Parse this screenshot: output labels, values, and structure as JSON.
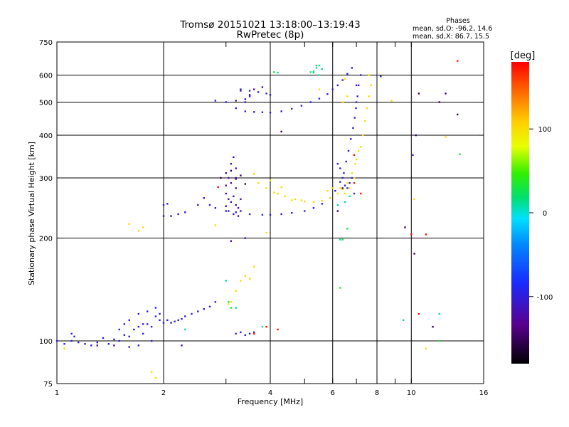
{
  "chart_data": {
    "type": "scatter",
    "title": "Tromsø 20151021 13:18:00–13:19:43",
    "subtitle": "RwPretec (8p)",
    "phase_box": {
      "heading": "Phases",
      "line1": "mean, sd,O: -96.2, 14.6",
      "line2": "mean, sd,X: 86.7, 15.5"
    },
    "xlabel": "Frequency [MHz]",
    "ylabel": "Stationary phase Virtual Height [km]",
    "x_scale": "log2",
    "y_scale": "log",
    "xlim": [
      1,
      16
    ],
    "ylim": [
      75,
      750
    ],
    "x_ticks": [
      1,
      2,
      4,
      6,
      8,
      10,
      16
    ],
    "x_tick_labels": [
      "1",
      "2",
      "4",
      "6",
      "8",
      "10",
      "16"
    ],
    "x_gridlines": [
      2,
      4,
      6,
      8,
      10
    ],
    "x_extra_ticks": [
      3,
      5,
      7,
      9
    ],
    "y_ticks": [
      75,
      100,
      200,
      300,
      400,
      500,
      600,
      750
    ],
    "y_tick_labels": [
      "75",
      "100",
      "200",
      "300",
      "400",
      "500",
      "600",
      "750"
    ],
    "y_gridlines": [
      100,
      200,
      300,
      400,
      500,
      600
    ],
    "grid": true,
    "colorbar": {
      "label": "[deg]",
      "range": [
        -180,
        180
      ],
      "tick_values": [
        100,
        0,
        -100
      ],
      "tick_labels": [
        "100",
        "0",
        "-100"
      ]
    },
    "series": [
      {
        "phase": -100,
        "points": [
          [
            1.0,
            100
          ],
          [
            1.05,
            98
          ],
          [
            1.1,
            100
          ],
          [
            1.15,
            99
          ],
          [
            1.2,
            98
          ],
          [
            1.25,
            97
          ],
          [
            1.3,
            99
          ],
          [
            1.35,
            102
          ],
          [
            1.4,
            98
          ],
          [
            1.45,
            101
          ],
          [
            1.5,
            100
          ],
          [
            1.55,
            104
          ],
          [
            1.6,
            103
          ],
          [
            1.65,
            108
          ],
          [
            1.7,
            110
          ],
          [
            1.75,
            105
          ],
          [
            1.8,
            112
          ],
          [
            1.85,
            110
          ],
          [
            1.9,
            118
          ],
          [
            1.95,
            115
          ],
          [
            2.0,
            113
          ],
          [
            2.05,
            115
          ],
          [
            2.1,
            113
          ],
          [
            2.15,
            114
          ],
          [
            2.2,
            115
          ],
          [
            2.25,
            116
          ],
          [
            2.3,
            118
          ],
          [
            2.4,
            120
          ],
          [
            2.5,
            122
          ],
          [
            2.6,
            124
          ],
          [
            2.7,
            126
          ],
          [
            2.8,
            130
          ],
          [
            1.1,
            105
          ],
          [
            1.12,
            103
          ],
          [
            1.5,
            108
          ],
          [
            1.55,
            112
          ],
          [
            1.6,
            115
          ],
          [
            1.7,
            120
          ],
          [
            1.75,
            112
          ],
          [
            1.8,
            122
          ],
          [
            1.9,
            125
          ],
          [
            1.95,
            120
          ],
          [
            1.85,
            100
          ],
          [
            1.7,
            97
          ],
          [
            3.2,
            105
          ],
          [
            3.3,
            106
          ],
          [
            3.4,
            104
          ],
          [
            3.5,
            105
          ],
          [
            3.6,
            106
          ],
          [
            2.0,
            232
          ],
          [
            2.1,
            232
          ],
          [
            2.2,
            235
          ],
          [
            2.3,
            238
          ],
          [
            2.0,
            250
          ],
          [
            2.05,
            252
          ],
          [
            2.5,
            250
          ],
          [
            2.6,
            262
          ],
          [
            2.7,
            250
          ],
          [
            2.8,
            245
          ],
          [
            3.0,
            240
          ],
          [
            3.2,
            238
          ],
          [
            3.5,
            235
          ],
          [
            3.8,
            234
          ],
          [
            4.0,
            234
          ],
          [
            4.3,
            235
          ],
          [
            4.6,
            237
          ],
          [
            5.0,
            240
          ],
          [
            5.3,
            245
          ],
          [
            5.6,
            252
          ],
          [
            5.9,
            262
          ],
          [
            6.1,
            275
          ],
          [
            6.3,
            292
          ],
          [
            6.45,
            310
          ],
          [
            6.55,
            335
          ],
          [
            6.65,
            360
          ],
          [
            6.75,
            390
          ],
          [
            6.85,
            420
          ],
          [
            6.92,
            450
          ],
          [
            6.98,
            480
          ],
          [
            7.05,
            520
          ],
          [
            7.1,
            560
          ],
          [
            7.2,
            600
          ],
          [
            7.0,
            500
          ],
          [
            6.8,
            300
          ],
          [
            6.7,
            290
          ],
          [
            6.6,
            280
          ],
          [
            6.5,
            285
          ],
          [
            6.9,
            270
          ],
          [
            6.4,
            300
          ],
          [
            6.3,
            320
          ],
          [
            6.2,
            330
          ],
          [
            2.8,
            505
          ],
          [
            3.0,
            500
          ],
          [
            3.2,
            480
          ],
          [
            3.4,
            470
          ],
          [
            3.6,
            468
          ],
          [
            3.8,
            467
          ],
          [
            4.0,
            466
          ],
          [
            4.3,
            470
          ],
          [
            4.6,
            478
          ],
          [
            4.9,
            488
          ],
          [
            5.2,
            500
          ],
          [
            5.5,
            512
          ],
          [
            5.8,
            528
          ],
          [
            6.0,
            545
          ],
          [
            6.2,
            560
          ],
          [
            6.4,
            580
          ],
          [
            6.6,
            605
          ],
          [
            6.8,
            630
          ],
          [
            7.0,
            560
          ],
          [
            3.3,
            545
          ],
          [
            3.5,
            540
          ],
          [
            3.7,
            535
          ],
          [
            3.9,
            530
          ],
          [
            4.0,
            525
          ],
          [
            3.5,
            520
          ],
          [
            3.4,
            510
          ],
          [
            8.2,
            595
          ],
          [
            10.1,
            350
          ]
        ]
      },
      {
        "phase": -120,
        "points": [
          [
            3.0,
            270
          ],
          [
            3.05,
            260
          ],
          [
            3.1,
            255
          ],
          [
            3.15,
            265
          ],
          [
            3.2,
            250
          ],
          [
            3.25,
            245
          ],
          [
            3.3,
            240
          ],
          [
            3.0,
            285
          ],
          [
            3.1,
            290
          ],
          [
            3.2,
            280
          ],
          [
            3.05,
            240
          ],
          [
            3.15,
            235
          ],
          [
            3.25,
            232
          ],
          [
            3.3,
            260
          ],
          [
            3.0,
            310
          ],
          [
            3.1,
            330
          ],
          [
            3.15,
            345
          ],
          [
            3.2,
            320
          ],
          [
            3.05,
            300
          ],
          [
            3.0,
            248
          ],
          [
            3.2,
            300
          ],
          [
            3.1,
            196
          ],
          [
            3.5,
            525
          ],
          [
            3.3,
            540
          ],
          [
            3.6,
            545
          ],
          [
            3.8,
            553
          ],
          [
            3.4,
            500
          ],
          [
            3.2,
            505
          ],
          [
            1.45,
            97
          ],
          [
            1.6,
            96
          ],
          [
            1.3,
            97
          ],
          [
            2.25,
            97
          ],
          [
            3.4,
            200
          ]
        ]
      },
      {
        "phase": 100,
        "points": [
          [
            3.7,
            290
          ],
          [
            3.9,
            280
          ],
          [
            4.1,
            272
          ],
          [
            4.4,
            265
          ],
          [
            4.7,
            260
          ],
          [
            5.0,
            256
          ],
          [
            5.3,
            255
          ],
          [
            5.6,
            257
          ],
          [
            5.9,
            262
          ],
          [
            6.2,
            270
          ],
          [
            6.4,
            278
          ],
          [
            6.6,
            290
          ],
          [
            6.8,
            310
          ],
          [
            7.0,
            340
          ],
          [
            7.2,
            370
          ],
          [
            7.3,
            400
          ],
          [
            7.4,
            440
          ],
          [
            7.5,
            480
          ],
          [
            7.6,
            520
          ],
          [
            7.7,
            560
          ],
          [
            6.9,
            300
          ],
          [
            6.95,
            330
          ],
          [
            7.1,
            360
          ],
          [
            6.7,
            280
          ],
          [
            6.5,
            270
          ],
          [
            3.3,
            150
          ],
          [
            3.4,
            155
          ],
          [
            3.5,
            152
          ],
          [
            3.2,
            140
          ],
          [
            3.1,
            130
          ],
          [
            3.05,
            128
          ],
          [
            3.6,
            165
          ],
          [
            6.4,
            500
          ],
          [
            6.6,
            520
          ],
          [
            5.5,
            545
          ],
          [
            6.5,
            585
          ],
          [
            7.6,
            600
          ],
          [
            3.6,
            308
          ],
          [
            4.0,
            295
          ],
          [
            2.8,
            218
          ],
          [
            1.85,
            81
          ],
          [
            1.9,
            78
          ],
          [
            1.6,
            220
          ],
          [
            1.7,
            210
          ],
          [
            1.75,
            215
          ],
          [
            4.3,
            282
          ],
          [
            4.2,
            270
          ],
          [
            5.8,
            275
          ],
          [
            6.0,
            280
          ],
          [
            6.3,
            280
          ],
          [
            3.9,
            207
          ],
          [
            4.6,
            258
          ],
          [
            4.9,
            258
          ],
          [
            1.05,
            95
          ],
          [
            12.5,
            395
          ],
          [
            10.2,
            260
          ],
          [
            8.8,
            505
          ],
          [
            11.0,
            95
          ]
        ]
      },
      {
        "phase": 10,
        "points": [
          [
            3.2,
            125
          ],
          [
            5.3,
            610
          ],
          [
            5.4,
            630
          ],
          [
            5.5,
            640
          ],
          [
            5.6,
            625
          ],
          [
            4.2,
            610
          ],
          [
            6.5,
            255
          ],
          [
            6.7,
            265
          ],
          [
            5.3,
            615
          ],
          [
            5.5,
            600
          ],
          [
            2.3,
            108
          ],
          [
            3.0,
            150
          ],
          [
            12.0,
            120
          ],
          [
            9.5,
            115
          ],
          [
            6.2,
            250
          ],
          [
            6.3,
            198
          ],
          [
            3.8,
            110
          ]
        ]
      },
      {
        "phase": 175,
        "points": [
          [
            3.9,
            110
          ],
          [
            4.2,
            108
          ],
          [
            6.9,
            290
          ],
          [
            7.2,
            270
          ],
          [
            10.5,
            120
          ],
          [
            13.5,
            660
          ],
          [
            6.9,
            350
          ],
          [
            2.85,
            282
          ],
          [
            11.0,
            205
          ],
          [
            10.0,
            205
          ],
          [
            3.6,
            105
          ]
        ]
      },
      {
        "phase": 30,
        "points": [
          [
            4.1,
            612
          ],
          [
            5.2,
            612
          ],
          [
            5.4,
            640
          ],
          [
            6.4,
            198
          ],
          [
            6.6,
            213
          ],
          [
            6.3,
            143
          ],
          [
            3.1,
            125
          ],
          [
            3.05,
            130
          ],
          [
            12.0,
            100
          ],
          [
            13.7,
            352
          ]
        ]
      },
      {
        "phase": -150,
        "points": [
          [
            3.2,
            298
          ],
          [
            3.3,
            305
          ],
          [
            3.4,
            288
          ],
          [
            2.9,
            300
          ],
          [
            3.1,
            315
          ],
          [
            6.4,
            280
          ],
          [
            6.2,
            240
          ],
          [
            4.3,
            410
          ],
          [
            10.2,
            180
          ],
          [
            11.5,
            110
          ],
          [
            12.0,
            500
          ],
          [
            9.6,
            215
          ],
          [
            10.5,
            530
          ],
          [
            12.5,
            530
          ],
          [
            10.3,
            400
          ],
          [
            13.5,
            460
          ]
        ]
      }
    ]
  }
}
